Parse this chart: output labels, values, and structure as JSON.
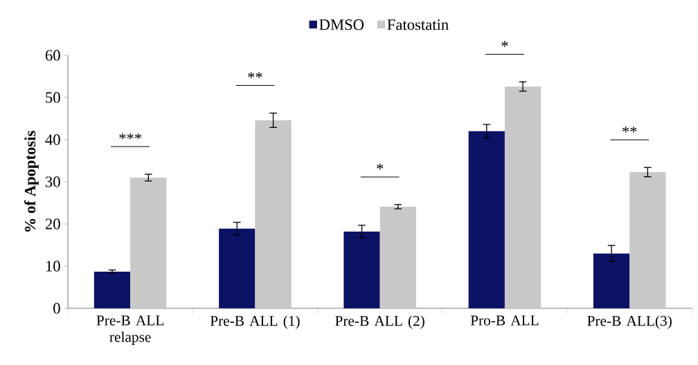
{
  "chart_data": {
    "type": "bar",
    "ylabel": "% of Apoptosis",
    "categories": [
      "Pre-B ALL relapse",
      "Pre-B ALL (1)",
      "Pre-B ALL (2)",
      "Pro-B ALL",
      "Pre-B ALL(3)"
    ],
    "series": [
      {
        "name": "DMSO",
        "color": "#0c1264",
        "values": [
          8.7,
          18.9,
          18.2,
          42.0,
          13.0
        ],
        "errors": [
          0.4,
          1.5,
          1.5,
          1.6,
          1.9
        ]
      },
      {
        "name": "Fatostatin",
        "color": "#c8c8c8",
        "values": [
          31.0,
          44.6,
          24.1,
          52.6,
          32.3
        ],
        "errors": [
          0.8,
          1.7,
          0.5,
          1.1,
          1.1
        ]
      }
    ],
    "ylim": [
      0,
      60
    ],
    "yticks": [
      0,
      10,
      20,
      30,
      40,
      50,
      60
    ],
    "grid": false,
    "legend": "top",
    "annotations": [
      "***",
      "**",
      "*",
      "*",
      "**"
    ]
  }
}
